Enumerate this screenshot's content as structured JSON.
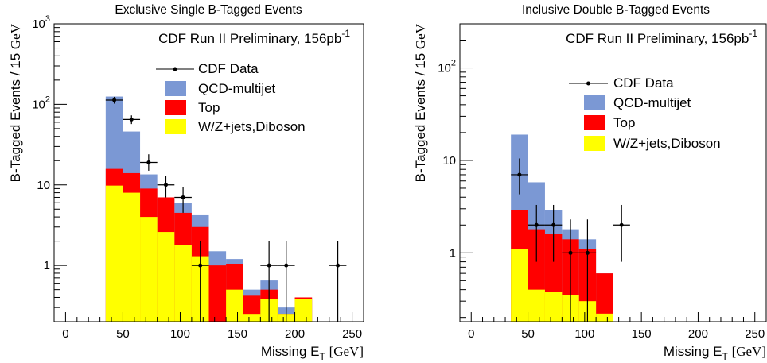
{
  "colors": {
    "qcd": "#7b98d4",
    "top": "#ff0000",
    "wz": "#ffff00",
    "data": "#000000"
  },
  "chart_data": [
    {
      "type": "bar",
      "stacked": true,
      "log_y": true,
      "title": "Exclusive Single B-Tagged Events",
      "annotation": {
        "text": "CDF Run II Preliminary, 156pb",
        "sup": "-1"
      },
      "xlabel": {
        "main": "Missing E",
        "sub": "T",
        "unit": "[GeV]"
      },
      "ylabel": {
        "main": "B-Tagged Events / 15 ",
        "unit": "GeV"
      },
      "xlim": [
        -10,
        260
      ],
      "ylim": [
        0.2,
        1000
      ],
      "x_ticks": [
        0,
        50,
        100,
        150,
        200,
        250
      ],
      "x_tick_labels": [
        "0",
        "50",
        "100",
        "150",
        "200",
        "250"
      ],
      "y_ticks": [
        1,
        10,
        100,
        1000
      ],
      "y_tick_labels": [
        {
          "base": "1",
          "exp": ""
        },
        {
          "base": "10",
          "exp": ""
        },
        {
          "base": "10",
          "exp": "2"
        },
        {
          "base": "10",
          "exp": "3"
        }
      ],
      "legend": {
        "placement": "top-right",
        "entries": [
          "CDF Data",
          "QCD-multijet",
          "Top",
          "W/Z+jets,Diboson"
        ]
      },
      "bin_edges": [
        35,
        50,
        65,
        80,
        95,
        110,
        125,
        140,
        155,
        170,
        185,
        200,
        215
      ],
      "series": [
        {
          "name": "W/Z+jets,Diboson",
          "values": [
            9.8,
            8.0,
            4.0,
            2.6,
            1.8,
            1.3,
            0.2,
            0.5,
            0.25,
            0.38,
            0.25,
            0.38
          ]
        },
        {
          "name": "Top",
          "values": [
            15.8,
            14.0,
            9.0,
            7.0,
            4.5,
            3.0,
            1.0,
            1.05,
            0.42,
            0.5,
            0.25,
            0.4
          ]
        },
        {
          "name": "QCD-multijet",
          "values": [
            125.0,
            46.0,
            13.5,
            6.7,
            6.0,
            4.2,
            1.5,
            1.2,
            0.5,
            0.65,
            0.3,
            0.4
          ]
        }
      ],
      "data_points": {
        "name": "CDF Data",
        "points": [
          {
            "x": 42.5,
            "y": 113,
            "y_lo": 102,
            "y_hi": 124
          },
          {
            "x": 57.5,
            "y": 65,
            "y_lo": 57,
            "y_hi": 73
          },
          {
            "x": 72.5,
            "y": 19,
            "y_lo": 15,
            "y_hi": 24
          },
          {
            "x": 87.5,
            "y": 10,
            "y_lo": 7,
            "y_hi": 13
          },
          {
            "x": 102.5,
            "y": 7,
            "y_lo": 4.5,
            "y_hi": 9.5
          },
          {
            "x": 117.5,
            "y": 1,
            "y_lo": 0.2,
            "y_hi": 2
          },
          {
            "x": 177.5,
            "y": 1,
            "y_lo": 0.2,
            "y_hi": 2
          },
          {
            "x": 192.5,
            "y": 1,
            "y_lo": 0.2,
            "y_hi": 2
          },
          {
            "x": 237.5,
            "y": 1,
            "y_lo": 0.2,
            "y_hi": 2
          }
        ]
      }
    },
    {
      "type": "bar",
      "stacked": true,
      "log_y": true,
      "title": "Inclusive Double B-Tagged Events",
      "annotation": {
        "text": "CDF Run II Preliminary, 156pb",
        "sup": "-1"
      },
      "xlabel": {
        "main": "Missing E",
        "sub": "T",
        "unit": "[GeV]"
      },
      "ylabel": {
        "main": "B-Tagged Events / 15 ",
        "unit": "GeV"
      },
      "xlim": [
        -10,
        260
      ],
      "ylim": [
        0.18,
        300
      ],
      "x_ticks": [
        0,
        50,
        100,
        150,
        200,
        250
      ],
      "x_tick_labels": [
        "0",
        "50",
        "100",
        "150",
        "200",
        "250"
      ],
      "y_ticks": [
        1,
        10,
        100
      ],
      "y_tick_labels": [
        {
          "base": "1",
          "exp": ""
        },
        {
          "base": "10",
          "exp": ""
        },
        {
          "base": "10",
          "exp": "2"
        }
      ],
      "legend": {
        "placement": "top-right",
        "entries": [
          "CDF Data",
          "QCD-multijet",
          "Top",
          "W/Z+jets,Diboson"
        ]
      },
      "bin_edges": [
        35,
        50,
        65,
        80,
        95,
        110,
        125,
        140
      ],
      "series": [
        {
          "name": "W/Z+jets,Diboson",
          "values": [
            1.1,
            0.4,
            0.38,
            0.35,
            0.3,
            0.22,
            0.18
          ]
        },
        {
          "name": "Top",
          "values": [
            2.9,
            1.8,
            1.6,
            1.4,
            1.1,
            0.6,
            0.18
          ]
        },
        {
          "name": "QCD-multijet",
          "values": [
            19.0,
            5.8,
            2.9,
            1.8,
            1.4,
            0.6,
            0.18
          ]
        }
      ],
      "data_points": {
        "name": "CDF Data",
        "points": [
          {
            "x": 42.5,
            "y": 7,
            "y_lo": 4.3,
            "y_hi": 10.5
          },
          {
            "x": 57.5,
            "y": 2,
            "y_lo": 0.8,
            "y_hi": 3.3
          },
          {
            "x": 72.5,
            "y": 2,
            "y_lo": 0.8,
            "y_hi": 3.3
          },
          {
            "x": 87.5,
            "y": 1,
            "y_lo": 0.18,
            "y_hi": 2.3
          },
          {
            "x": 102.5,
            "y": 1,
            "y_lo": 0.18,
            "y_hi": 2.3
          },
          {
            "x": 132.5,
            "y": 2,
            "y_lo": 0.8,
            "y_hi": 3.3
          }
        ]
      }
    }
  ]
}
